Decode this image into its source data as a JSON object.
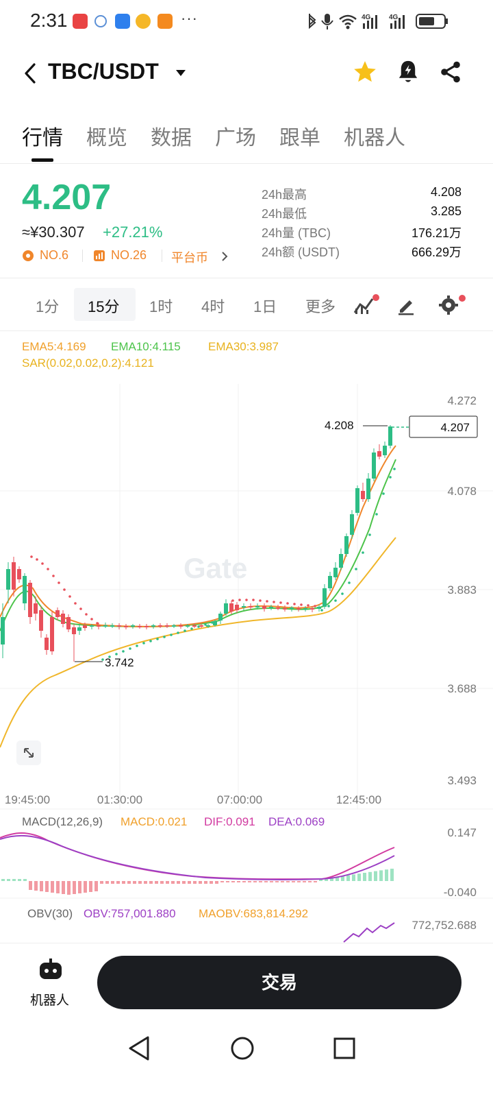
{
  "status_bar": {
    "time": "2:31",
    "more": "···"
  },
  "header": {
    "pair": "TBC/USDT"
  },
  "tabs": [
    {
      "label": "行情",
      "active": true
    },
    {
      "label": "概览"
    },
    {
      "label": "数据"
    },
    {
      "label": "广场"
    },
    {
      "label": "跟单"
    },
    {
      "label": "机器人"
    }
  ],
  "ticker": {
    "price": "4.207",
    "cny": "≈¥30.307",
    "change": "+27.21%",
    "rank1": "NO.6",
    "rank2": "NO.26",
    "category": "平台币",
    "stats": [
      {
        "label": "24h最高",
        "value": "4.208"
      },
      {
        "label": "24h最低",
        "value": "3.285"
      },
      {
        "label": "24h量 (TBC)",
        "value": "176.21万"
      },
      {
        "label": "24h额 (USDT)",
        "value": "666.29万"
      }
    ]
  },
  "intervals": [
    {
      "label": "1分"
    },
    {
      "label": "15分",
      "active": true
    },
    {
      "label": "1时"
    },
    {
      "label": "4时"
    },
    {
      "label": "1日"
    },
    {
      "label": "更多"
    }
  ],
  "indicators": {
    "ema5": "EMA5:4.169",
    "ema10": "EMA10:4.115",
    "ema30": "EMA30:3.987",
    "sar": "SAR(0.02,0.02,0.2):4.121",
    "macd_name": "MACD(12,26,9)",
    "macd": "MACD:0.021",
    "dif": "DIF:0.091",
    "dea": "DEA:0.069",
    "obv_name": "OBV(30)",
    "obv": "OBV:757,001.880",
    "maobv": "MAOBV:683,814.292"
  },
  "chart_data": {
    "type": "candlestick",
    "interval": "15分",
    "watermark": "Gate",
    "price_axis": [
      "4.272",
      "4.078",
      "3.883",
      "3.688",
      "3.493"
    ],
    "time_axis": [
      "19:45:00",
      "01:30:00",
      "07:00:00",
      "12:45:00"
    ],
    "last_price": "4.207",
    "high_label": "4.208",
    "low_label": "3.742",
    "macd_axis": [
      "0.147",
      "-0.040"
    ],
    "obv_axis": [
      "772,752.688"
    ]
  },
  "bottom": {
    "robot_label": "机器人",
    "trade_label": "交易"
  },
  "colors": {
    "up": "#2dbd85",
    "down": "#e8505b",
    "accent": "#f0862b"
  }
}
